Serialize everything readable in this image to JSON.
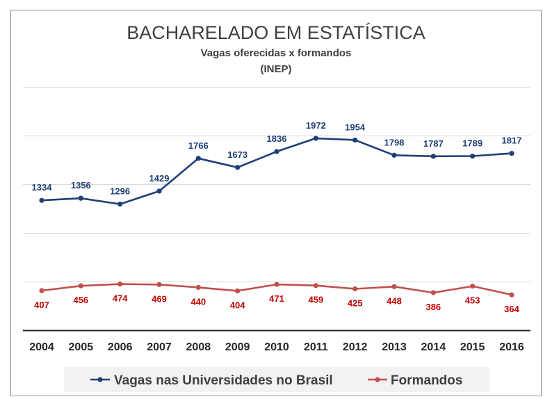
{
  "chart_data": {
    "type": "line",
    "title": "BACHARELADO EM ESTATÍSTICA",
    "subtitle": "Vagas oferecidas x formandos",
    "subtitle2": "(INEP)",
    "x": [
      "2004",
      "2005",
      "2006",
      "2007",
      "2008",
      "2009",
      "2010",
      "2011",
      "2012",
      "2013",
      "2014",
      "2015",
      "2016"
    ],
    "series": [
      {
        "name": "Vagas nas Universidades no Brasil",
        "color": "#1f3f76",
        "values": [
          1334,
          1356,
          1296,
          1429,
          1766,
          1673,
          1836,
          1972,
          1954,
          1798,
          1787,
          1789,
          1817
        ],
        "label_position": "above"
      },
      {
        "name": "Formandos",
        "color": "#c0504d",
        "label_color": "#c00000",
        "values": [
          407,
          456,
          474,
          469,
          440,
          404,
          471,
          459,
          425,
          448,
          386,
          453,
          364
        ],
        "label_position": "below"
      }
    ],
    "ylim": [
      0,
      2500
    ],
    "grid": true,
    "legend_position": "bottom"
  }
}
